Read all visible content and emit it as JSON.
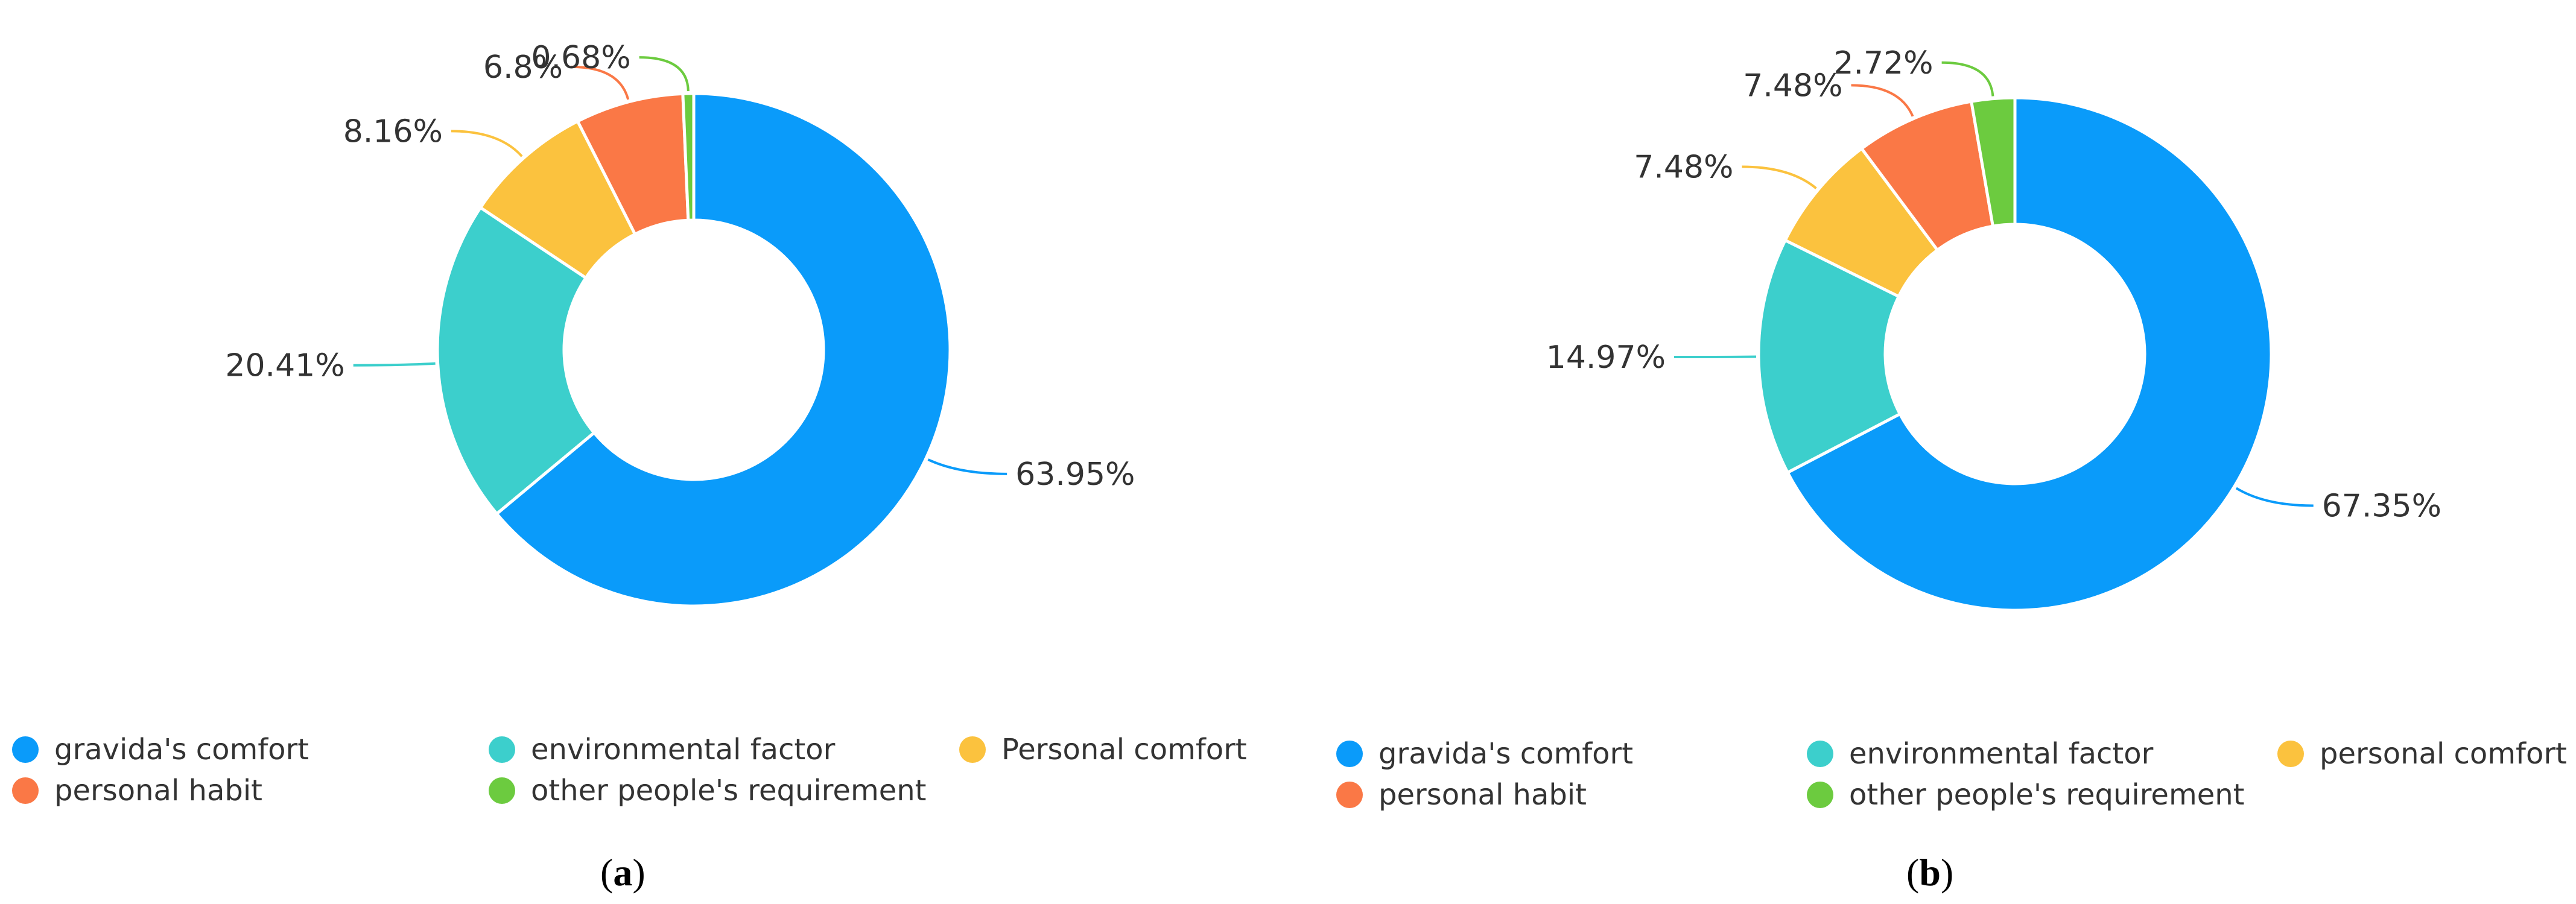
{
  "colors": {
    "gravidas_comfort": "#0a9bfa",
    "environmental_factor": "#3ccfcc",
    "personal_comfort": "#fbc23e",
    "personal_habit": "#fa7846",
    "other_requirement": "#6ccb3f"
  },
  "chart_data": [
    {
      "type": "pie",
      "panel": "a",
      "caption_letter": "a",
      "categories": [
        "gravida's comfort",
        "environmental factor",
        "Personal comfort",
        "personal habit",
        "other people's requirement"
      ],
      "values": [
        63.95,
        20.41,
        8.16,
        6.8,
        0.68
      ],
      "value_labels": [
        "63.95%",
        "20.41%",
        "8.16%",
        "6.8%",
        "0.68%"
      ],
      "legend_placement": "bottom",
      "donut": true
    },
    {
      "type": "pie",
      "panel": "b",
      "caption_letter": "b",
      "categories": [
        "gravida's comfort",
        "environmental factor",
        "personal comfort",
        "personal habit",
        "other people's requirement"
      ],
      "values": [
        67.35,
        14.97,
        7.48,
        7.48,
        2.72
      ],
      "value_labels": [
        "67.35%",
        "14.97%",
        "7.48%",
        "7.48%",
        "2.72%"
      ],
      "legend_placement": "bottom",
      "donut": true
    }
  ]
}
